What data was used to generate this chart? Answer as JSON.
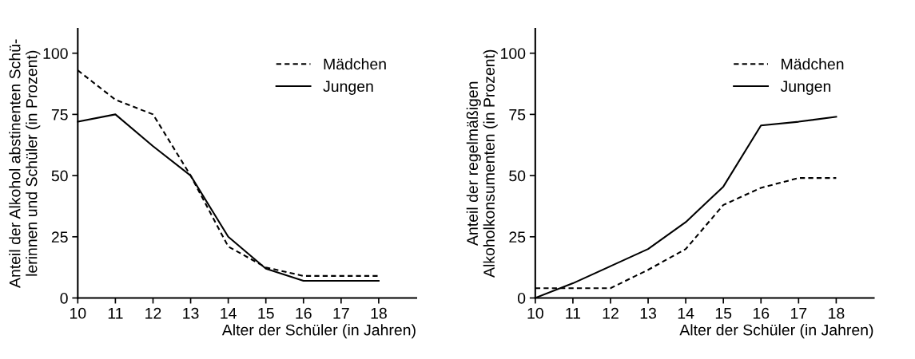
{
  "chart_data": [
    {
      "type": "line",
      "xlabel": "Alter der Schüler (in Jahren)",
      "ylabel": "Anteil der Alkohol abstinenten Schü-\nlerinnen und Schüler (in Prozent)",
      "x": [
        10,
        11,
        12,
        13,
        14,
        15,
        16,
        17,
        18
      ],
      "xlim": [
        10,
        19
      ],
      "ylim": [
        0,
        110
      ],
      "xticks": [
        10,
        11,
        12,
        13,
        14,
        15,
        16,
        17,
        18
      ],
      "yticks": [
        0,
        25,
        50,
        75,
        100
      ],
      "grid": false,
      "legend": "top right",
      "marker": "none",
      "series": [
        {
          "name": "Mädchen",
          "color": "#000000",
          "line_style": "dashed",
          "values": [
            93,
            81,
            75,
            50,
            21,
            12.5,
            9,
            9,
            9
          ]
        },
        {
          "name": "Jungen",
          "color": "#000000",
          "line_style": "solid",
          "values": [
            72,
            75,
            62,
            50,
            25,
            12,
            7,
            7,
            7
          ]
        }
      ]
    },
    {
      "type": "line",
      "xlabel": "Alter der Schüler (in Jahren)",
      "ylabel": "Anteil der regelmäßigen\nAlkoholkonsumenten (in Prozent)",
      "x": [
        10,
        11,
        12,
        13,
        14,
        15,
        16,
        17,
        18
      ],
      "xlim": [
        10,
        19
      ],
      "ylim": [
        0,
        110
      ],
      "xticks": [
        10,
        11,
        12,
        13,
        14,
        15,
        16,
        17,
        18
      ],
      "yticks": [
        0,
        25,
        50,
        75,
        100
      ],
      "grid": false,
      "legend": "top right",
      "marker": "none",
      "series": [
        {
          "name": "Mädchen",
          "color": "#000000",
          "line_style": "dashed",
          "values": [
            4,
            4,
            4,
            11.5,
            20,
            38,
            45,
            49,
            49
          ]
        },
        {
          "name": "Jungen",
          "color": "#000000",
          "line_style": "solid",
          "values": [
            0,
            6,
            13,
            20,
            31,
            45.5,
            70.5,
            72,
            74
          ]
        }
      ]
    }
  ]
}
